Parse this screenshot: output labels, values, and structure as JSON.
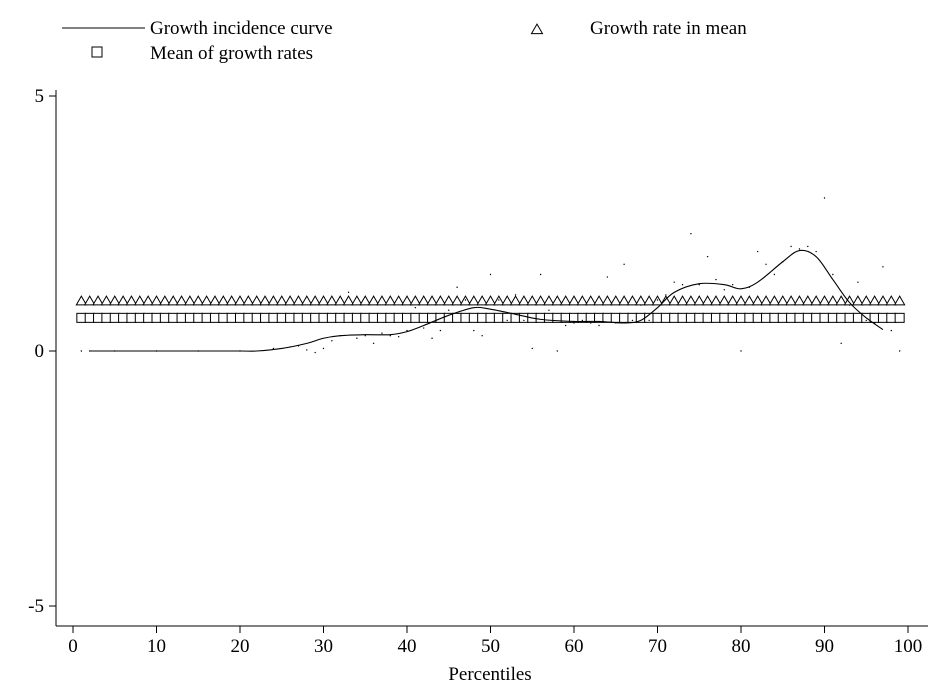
{
  "chart_data": {
    "type": "line",
    "title": "",
    "xlabel": "Percentiles",
    "ylabel": "",
    "xlim": [
      0,
      100
    ],
    "ylim": [
      -5,
      5
    ],
    "x_ticks": [
      0,
      10,
      20,
      30,
      40,
      50,
      60,
      70,
      80,
      90,
      100
    ],
    "y_ticks": [
      -5,
      0,
      5
    ],
    "grid": false,
    "legend_position": "top",
    "series": [
      {
        "name": "Growth incidence curve",
        "style": "line",
        "color": "#000000",
        "x": [
          2,
          5,
          10,
          15,
          20,
          22,
          25,
          28,
          30,
          32,
          35,
          38,
          40,
          42,
          45,
          48,
          50,
          53,
          56,
          60,
          63,
          66,
          68,
          70,
          72,
          75,
          78,
          80,
          82,
          85,
          87,
          89,
          91,
          93,
          95,
          97
        ],
        "values": [
          0,
          0,
          0,
          0,
          0,
          0,
          0.05,
          0.15,
          0.25,
          0.3,
          0.32,
          0.32,
          0.38,
          0.5,
          0.7,
          0.85,
          0.82,
          0.72,
          0.62,
          0.58,
          0.58,
          0.55,
          0.6,
          0.85,
          1.15,
          1.32,
          1.3,
          1.22,
          1.35,
          1.75,
          1.97,
          1.85,
          1.4,
          0.95,
          0.65,
          0.42
        ]
      },
      {
        "name": "Growth rate in mean",
        "style": "marker-triangle",
        "color": "#000000",
        "x_start": 1,
        "x_end": 99,
        "values": [
          0.97
        ]
      },
      {
        "name": "Mean of growth rates",
        "style": "marker-square",
        "color": "#000000",
        "x_start": 1,
        "x_end": 99,
        "values": [
          0.65
        ]
      },
      {
        "name": "",
        "style": "dots",
        "color": "#000000",
        "points": [
          [
            1,
            0
          ],
          [
            2,
            0
          ],
          [
            5,
            0
          ],
          [
            10,
            0
          ],
          [
            15,
            0
          ],
          [
            20,
            0
          ],
          [
            24,
            0.05
          ],
          [
            26,
            0.08
          ],
          [
            27,
            0.1
          ],
          [
            28,
            0.02
          ],
          [
            29,
            -0.03
          ],
          [
            30,
            0.05
          ],
          [
            31,
            0.2
          ],
          [
            32,
            0.3
          ],
          [
            33,
            1.15
          ],
          [
            34,
            0.25
          ],
          [
            35,
            0.3
          ],
          [
            36,
            0.15
          ],
          [
            37,
            0.35
          ],
          [
            38,
            0.3
          ],
          [
            39,
            0.28
          ],
          [
            40,
            0.4
          ],
          [
            41,
            0.85
          ],
          [
            42,
            0.45
          ],
          [
            43,
            0.25
          ],
          [
            44,
            0.4
          ],
          [
            45,
            0.8
          ],
          [
            46,
            1.25
          ],
          [
            47,
            1.0
          ],
          [
            48,
            0.4
          ],
          [
            49,
            0.3
          ],
          [
            50,
            1.5
          ],
          [
            51,
            1.0
          ],
          [
            52,
            0.6
          ],
          [
            53,
            1.1
          ],
          [
            54,
            0.6
          ],
          [
            55,
            0.05
          ],
          [
            56,
            1.5
          ],
          [
            57,
            0.8
          ],
          [
            58,
            0
          ],
          [
            59,
            0.5
          ],
          [
            60,
            0.55
          ],
          [
            61,
            0.6
          ],
          [
            62,
            0.55
          ],
          [
            63,
            0.5
          ],
          [
            64,
            1.45
          ],
          [
            65,
            0.55
          ],
          [
            66,
            1.7
          ],
          [
            67,
            0.6
          ],
          [
            68,
            0.9
          ],
          [
            69,
            0.6
          ],
          [
            70,
            1.0
          ],
          [
            71,
            1.1
          ],
          [
            72,
            1.35
          ],
          [
            73,
            1.3
          ],
          [
            74,
            2.3
          ],
          [
            75,
            1.3
          ],
          [
            76,
            1.85
          ],
          [
            77,
            1.4
          ],
          [
            78,
            1.2
          ],
          [
            79,
            1.3
          ],
          [
            80,
            0
          ],
          [
            81,
            1.25
          ],
          [
            82,
            1.95
          ],
          [
            83,
            1.7
          ],
          [
            84,
            1.5
          ],
          [
            85,
            1.75
          ],
          [
            86,
            2.05
          ],
          [
            87,
            2.0
          ],
          [
            88,
            2.05
          ],
          [
            89,
            1.95
          ],
          [
            90,
            3.0
          ],
          [
            91,
            1.5
          ],
          [
            92,
            0.15
          ],
          [
            93,
            0.9
          ],
          [
            94,
            1.35
          ],
          [
            95,
            0.6
          ],
          [
            96,
            0.55
          ],
          [
            97,
            1.65
          ],
          [
            98,
            0.4
          ],
          [
            99,
            0
          ]
        ]
      }
    ],
    "legend": [
      {
        "label": "Growth incidence curve",
        "symbol": "line"
      },
      {
        "label": "Growth rate in mean",
        "symbol": "triangle"
      },
      {
        "label": "Mean of growth rates",
        "symbol": "square"
      }
    ]
  }
}
